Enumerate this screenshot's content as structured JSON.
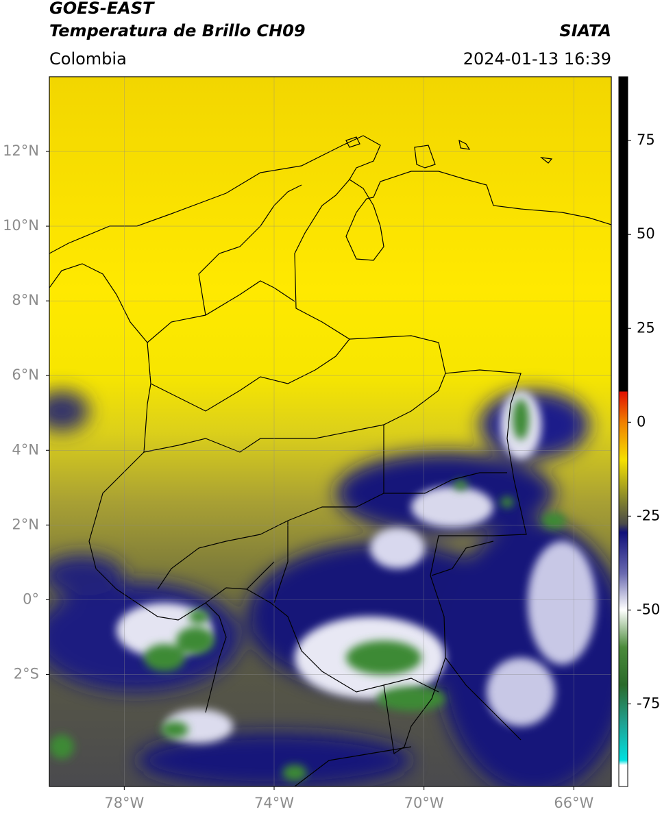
{
  "header": {
    "title_line1": "GOES-EAST",
    "title_line2": "Temperatura de Brillo CH09",
    "source": "SIATA",
    "region": "Colombia",
    "datetime": "2024-01-13 16:39"
  },
  "map": {
    "xlim": [
      -80,
      -65
    ],
    "ylim": [
      -5,
      14
    ],
    "grid": true,
    "xticks": [
      {
        "value": -78,
        "label": "78°W"
      },
      {
        "value": -74,
        "label": "74°W"
      },
      {
        "value": -70,
        "label": "70°W"
      },
      {
        "value": -66,
        "label": "66°W"
      }
    ],
    "yticks": [
      {
        "value": 12,
        "label": "12°N"
      },
      {
        "value": 10,
        "label": "10°N"
      },
      {
        "value": 8,
        "label": "8°N"
      },
      {
        "value": 6,
        "label": "6°N"
      },
      {
        "value": 4,
        "label": "4°N"
      },
      {
        "value": 2,
        "label": "2°N"
      },
      {
        "value": 0,
        "label": "0°"
      },
      {
        "value": -2,
        "label": "2°S"
      }
    ]
  },
  "colorbar": {
    "lim": [
      -97,
      92
    ],
    "ticks": [
      75,
      50,
      25,
      0,
      -25,
      -50,
      -75
    ]
  }
}
